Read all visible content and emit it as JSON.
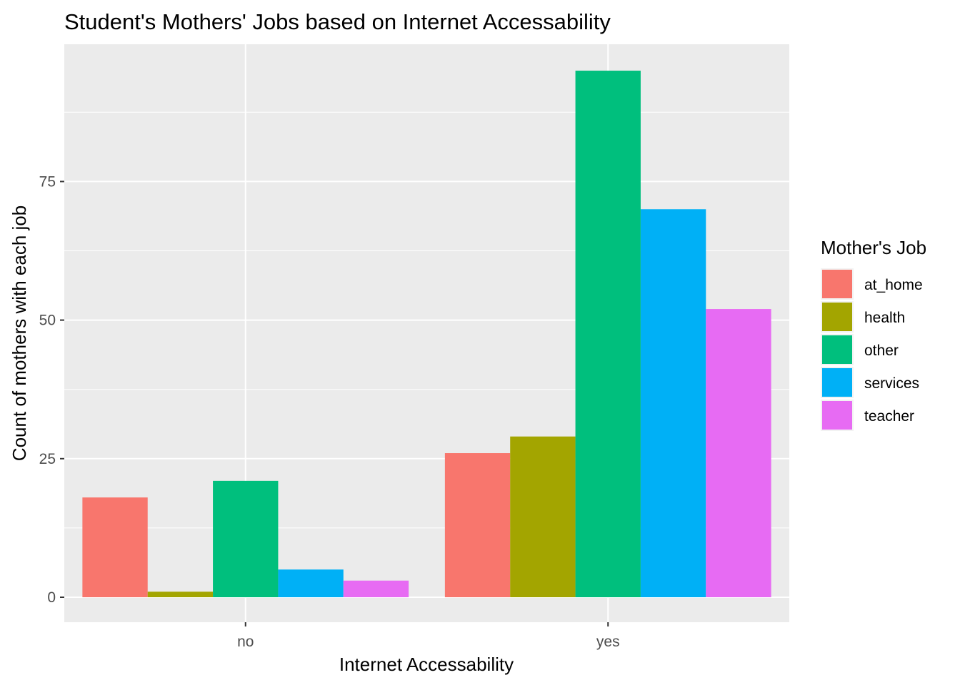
{
  "chart_data": {
    "type": "bar",
    "title": "Student's Mothers' Jobs based on Internet Accessability",
    "xlabel": "Internet Accessability",
    "ylabel": "Count of mothers with each job",
    "categories": [
      "no",
      "yes"
    ],
    "ylim": [
      -5,
      99
    ],
    "yticks": [
      0,
      25,
      50,
      75
    ],
    "grid": true,
    "legend": {
      "title": "Mother's Job",
      "position": "right"
    },
    "series": [
      {
        "name": "at_home",
        "color": "#F8766D",
        "values": [
          18,
          26
        ]
      },
      {
        "name": "health",
        "color": "#A3A500",
        "values": [
          1,
          29
        ]
      },
      {
        "name": "other",
        "color": "#00BF7D",
        "values": [
          21,
          95
        ]
      },
      {
        "name": "services",
        "color": "#00B0F6",
        "values": [
          5,
          70
        ]
      },
      {
        "name": "teacher",
        "color": "#E76BF3",
        "values": [
          3,
          52
        ]
      }
    ]
  }
}
